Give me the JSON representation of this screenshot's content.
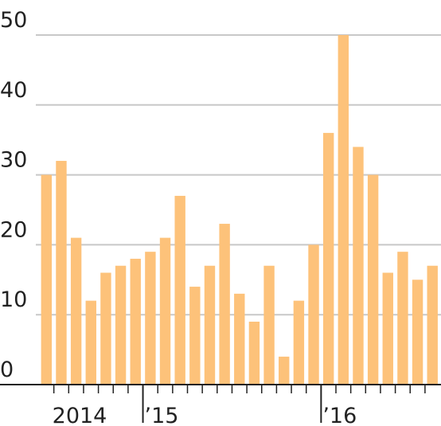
{
  "chart_data": {
    "type": "bar",
    "categories": [
      null,
      null,
      "2014",
      null,
      null,
      null,
      null,
      "’15",
      null,
      null,
      null,
      null,
      null,
      null,
      null,
      null,
      null,
      null,
      null,
      "’16",
      null,
      null,
      null,
      null,
      null,
      null,
      null
    ],
    "values": [
      30,
      32,
      21,
      12,
      16,
      17,
      18,
      19,
      21,
      27,
      14,
      17,
      23,
      13,
      9,
      17,
      4,
      12,
      20,
      36,
      50,
      34,
      30,
      16,
      19,
      15,
      17
    ],
    "color": "#fdc27a",
    "ylim": [
      0,
      50
    ],
    "yticks": [
      0,
      10,
      20,
      30,
      40,
      50
    ],
    "grid": true
  }
}
